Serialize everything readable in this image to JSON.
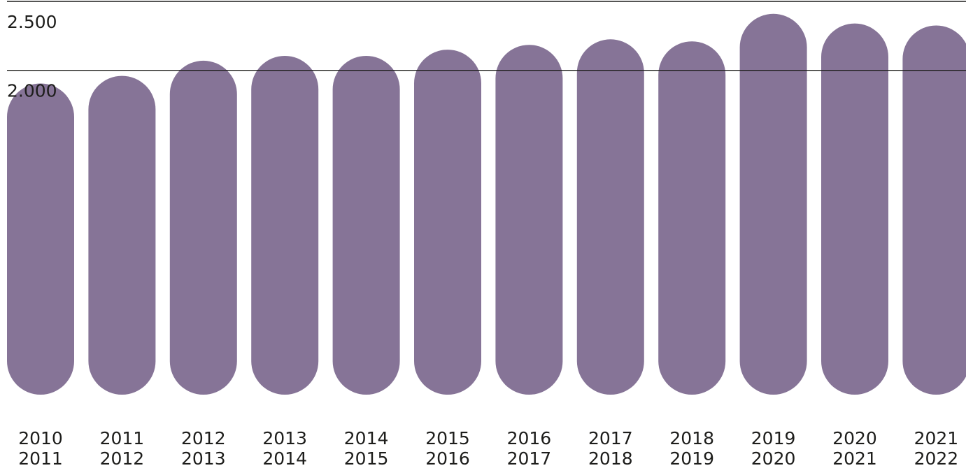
{
  "chart_data": {
    "type": "bar",
    "title": "",
    "xlabel": "",
    "ylabel": "",
    "categories": [
      [
        "2010",
        "2011"
      ],
      [
        "2011",
        "2012"
      ],
      [
        "2012",
        "2013"
      ],
      [
        "2013",
        "2014"
      ],
      [
        "2014",
        "2015"
      ],
      [
        "2015",
        "2016"
      ],
      [
        "2016",
        "2017"
      ],
      [
        "2017",
        "2018"
      ],
      [
        "2018",
        "2019"
      ],
      [
        "2019",
        "2020"
      ],
      [
        "2020",
        "2021"
      ],
      [
        "2021",
        "2022"
      ]
    ],
    "values": [
      1905,
      1960,
      2070,
      2105,
      2105,
      2150,
      2185,
      2225,
      2210,
      2410,
      2340,
      2325
    ],
    "yticks": [
      {
        "value": 2500,
        "label": "2.500"
      },
      {
        "value": 2000,
        "label": "2.000"
      }
    ],
    "grid": true,
    "bar_color": "#867497",
    "line_color": "#1d1d1b"
  }
}
